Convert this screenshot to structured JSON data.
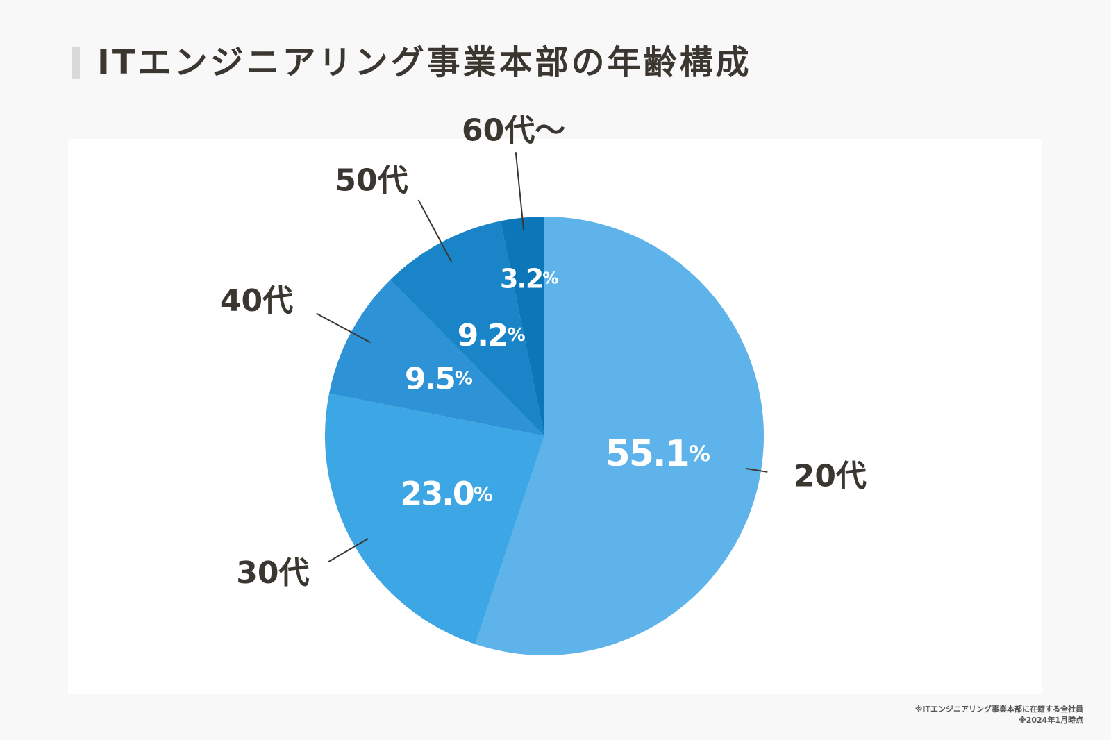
{
  "title": "ITエンジニアリング事業本部の年齢構成",
  "notes": [
    "※ITエンジニアリング事業本部に在籍する全社員",
    "※2024年1月時点"
  ],
  "chart_data": {
    "type": "pie",
    "title": "ITエンジニアリング事業本部の年齢構成",
    "start": "12 o'clock",
    "direction": "clockwise",
    "slices": [
      {
        "label": "20代",
        "value": 55.1,
        "display": "55.1",
        "color": "#5db3ea"
      },
      {
        "label": "30代",
        "value": 23.0,
        "display": "23.0",
        "color": "#3da6e4"
      },
      {
        "label": "40代",
        "value": 9.5,
        "display": "9.5",
        "color": "#2d92d6"
      },
      {
        "label": "50代",
        "value": 9.2,
        "display": "9.2",
        "color": "#1984c8"
      },
      {
        "label": "60代〜",
        "value": 3.2,
        "display": "3.2",
        "color": "#0b76b8"
      }
    ],
    "unit": "%"
  }
}
